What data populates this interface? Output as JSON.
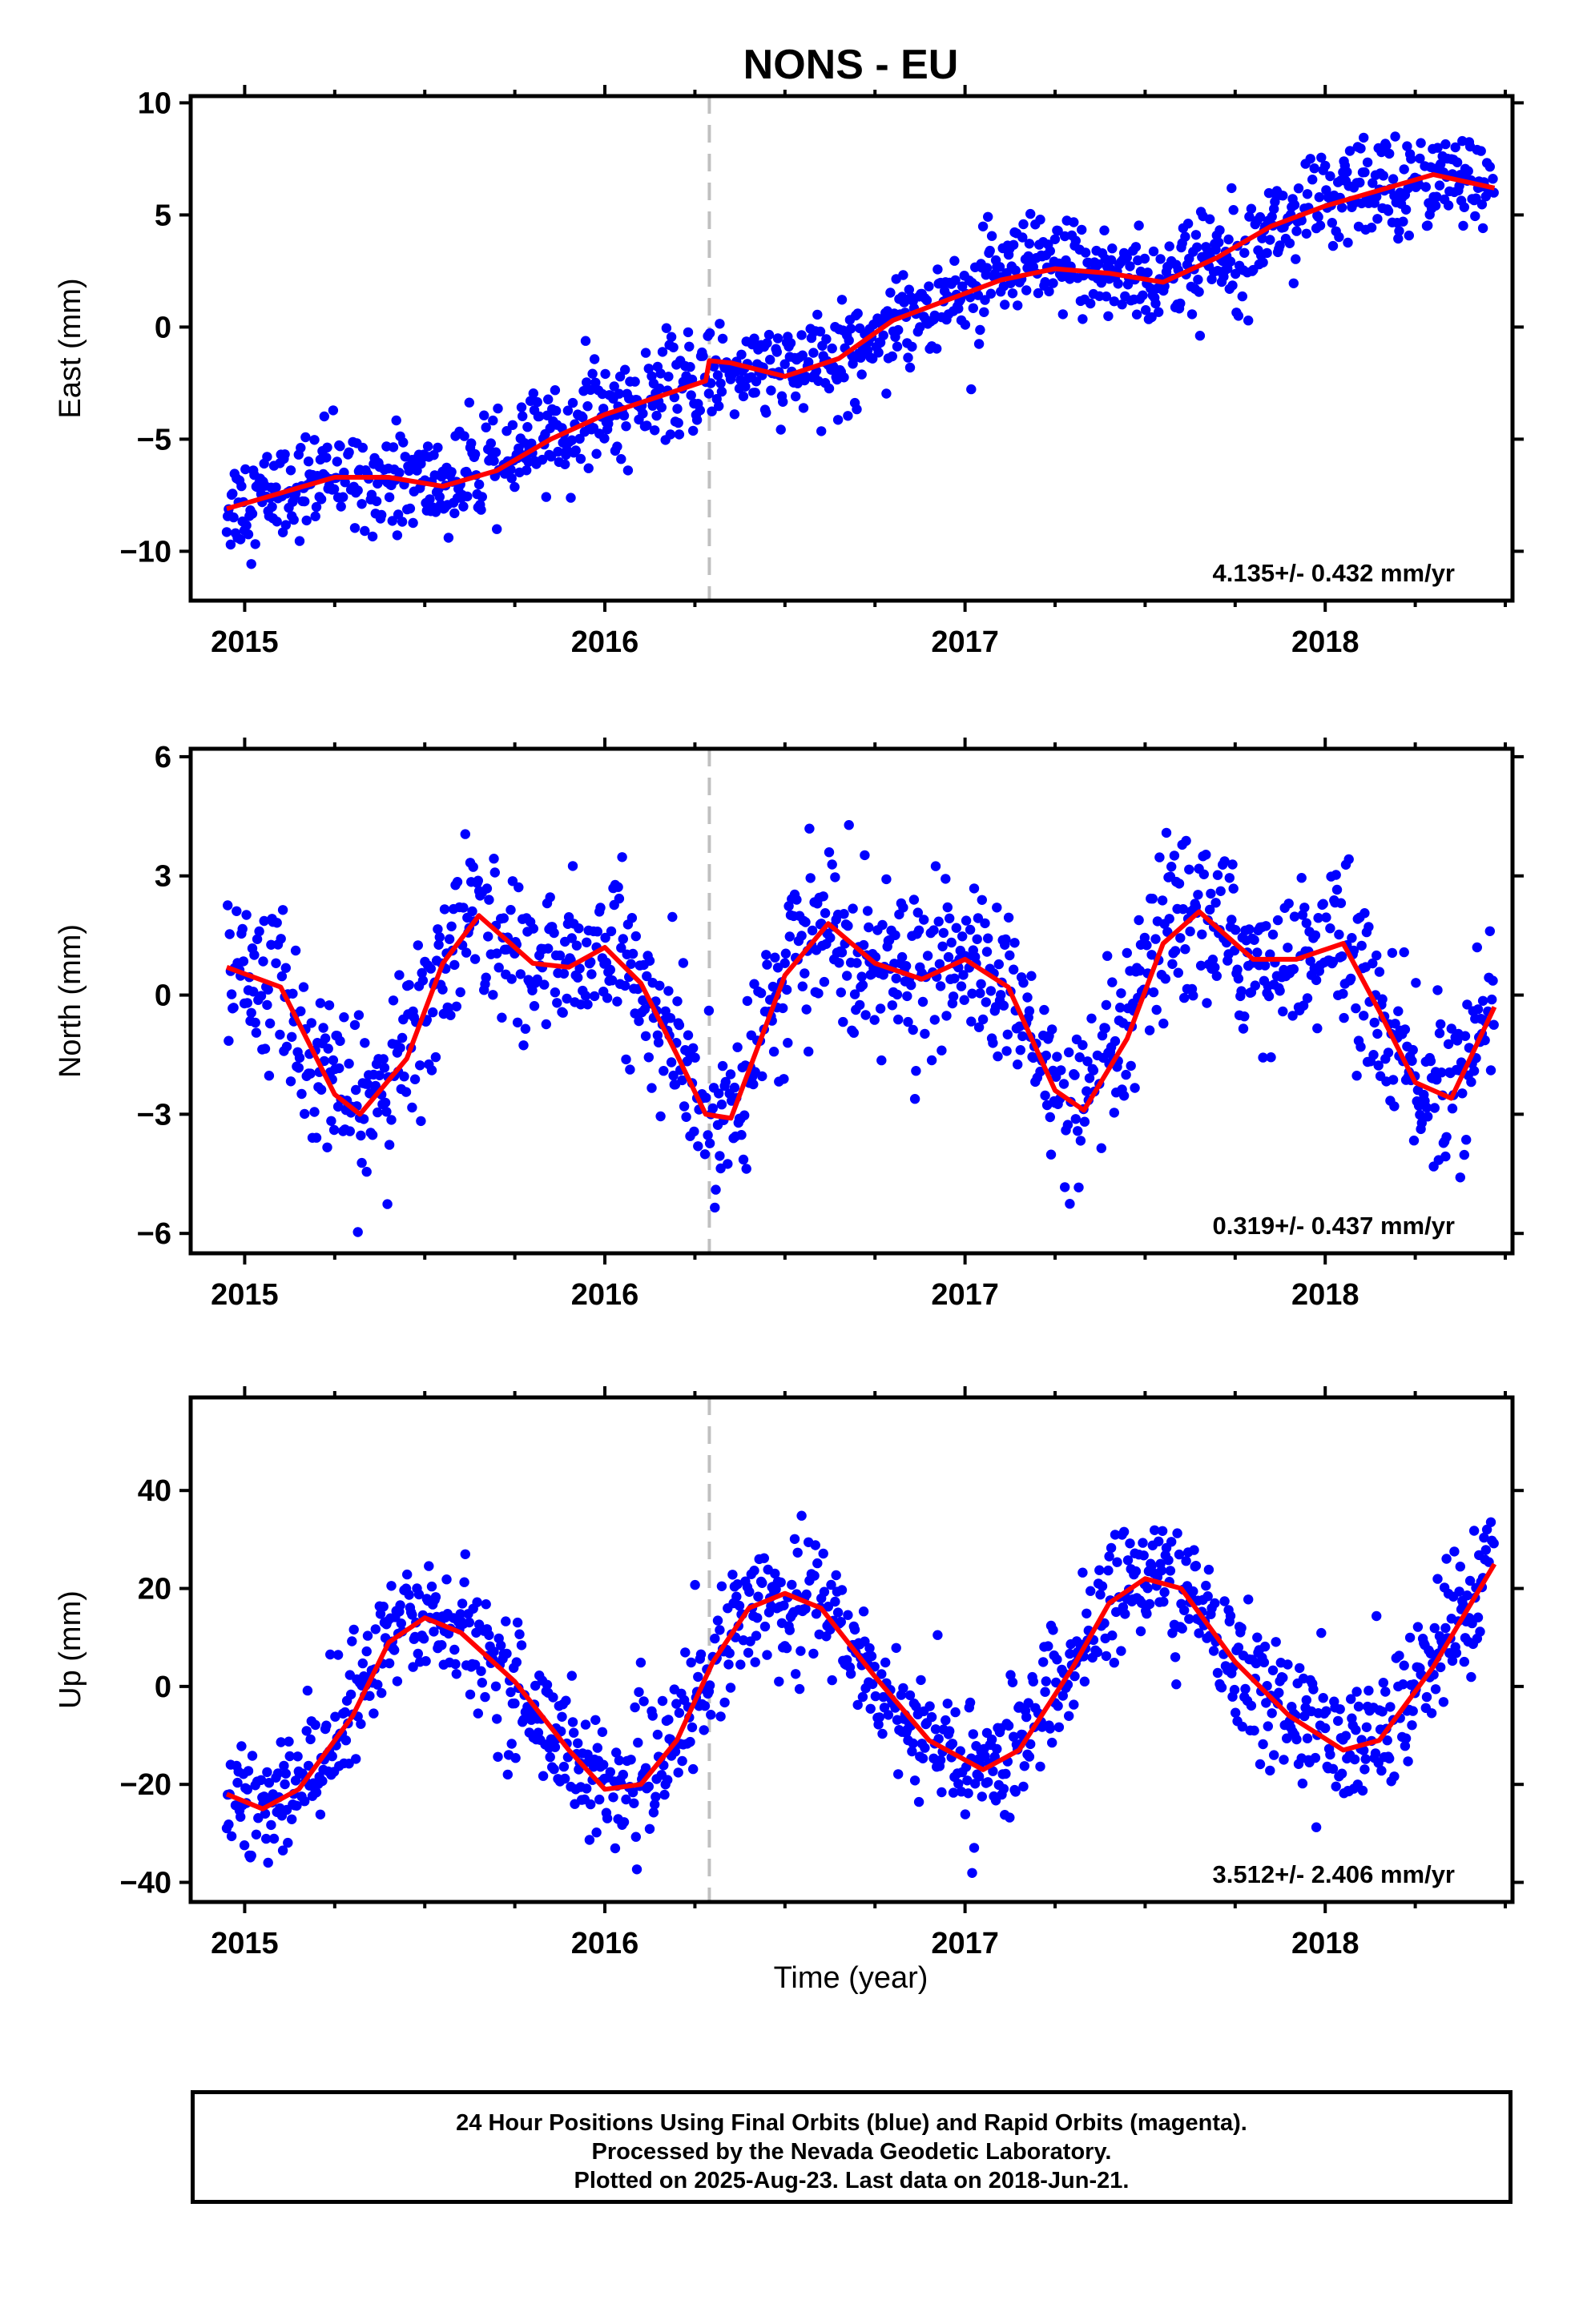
{
  "title": "NONS - EU",
  "x_axis": {
    "label": "Time (year)",
    "ticks": [
      2015,
      2016,
      2017,
      2018
    ],
    "range": [
      2014.85,
      2018.52
    ]
  },
  "event_line_year": 2016.29,
  "colors": {
    "points": "#0000ff",
    "model": "#ff0000",
    "event_line": "#c0c0c0"
  },
  "caption": {
    "line1": "24 Hour Positions Using Final Orbits (blue) and Rapid Orbits (magenta).",
    "line2": "Processed by the Nevada Geodetic Laboratory.",
    "line3": "Plotted on 2025-Aug-23. Last data on 2018-Jun-21."
  },
  "chart_data": [
    {
      "type": "scatter",
      "component": "east",
      "ylabel": "East (mm)",
      "ylim": [
        -12.2,
        10.3
      ],
      "yticks": [
        -10,
        -5,
        0,
        5,
        10
      ],
      "rate_text": "4.135+/- 0.432 mm/yr",
      "series": [
        {
          "name": "Daily positions",
          "x": [
            2014.95,
            2015.1,
            2015.25,
            2015.4,
            2015.55,
            2015.7,
            2015.85,
            2016.0,
            2016.15,
            2016.28,
            2016.35,
            2016.5,
            2016.65,
            2016.8,
            2016.95,
            2017.1,
            2017.25,
            2017.4,
            2017.55,
            2017.7,
            2017.85,
            2018.0,
            2018.15,
            2018.3,
            2018.47
          ],
          "y": [
            -8.0,
            -7.3,
            -6.6,
            -6.7,
            -7.1,
            -6.2,
            -4.8,
            -3.8,
            -3.1,
            -2.4,
            -1.6,
            -2.2,
            -1.5,
            0.4,
            1.2,
            2.2,
            2.7,
            2.4,
            2.0,
            3.2,
            4.6,
            5.5,
            6.2,
            6.8,
            6.2
          ]
        },
        {
          "name": "Model fit",
          "x": [
            2014.95,
            2015.1,
            2015.25,
            2015.4,
            2015.55,
            2015.7,
            2015.85,
            2016.0,
            2016.15,
            2016.28,
            2016.29,
            2016.35,
            2016.5,
            2016.65,
            2016.8,
            2016.95,
            2017.1,
            2017.25,
            2017.4,
            2017.55,
            2017.7,
            2017.85,
            2018.0,
            2018.15,
            2018.3,
            2018.47
          ],
          "y": [
            -8.1,
            -7.4,
            -6.7,
            -6.7,
            -7.1,
            -6.4,
            -5.0,
            -3.9,
            -3.1,
            -2.4,
            -1.5,
            -1.6,
            -2.2,
            -1.4,
            0.3,
            1.2,
            2.1,
            2.6,
            2.4,
            2.0,
            3.1,
            4.5,
            5.4,
            6.1,
            6.8,
            6.2
          ]
        }
      ]
    },
    {
      "type": "scatter",
      "component": "north",
      "ylabel": "North (mm)",
      "ylim": [
        -6.5,
        6.2
      ],
      "yticks": [
        -6,
        -3,
        0,
        3,
        6
      ],
      "rate_text": "0.319+/- 0.437 mm/yr",
      "series": [
        {
          "name": "Daily positions",
          "x": [
            2014.95,
            2015.1,
            2015.25,
            2015.32,
            2015.45,
            2015.55,
            2015.65,
            2015.8,
            2015.9,
            2016.0,
            2016.1,
            2016.2,
            2016.28,
            2016.35,
            2016.5,
            2016.62,
            2016.75,
            2016.88,
            2017.0,
            2017.12,
            2017.25,
            2017.33,
            2017.45,
            2017.55,
            2017.65,
            2017.8,
            2017.92,
            2018.05,
            2018.15,
            2018.25,
            2018.35,
            2018.47
          ],
          "y": [
            0.6,
            0.1,
            -2.6,
            -3.0,
            -1.5,
            0.9,
            2.0,
            0.7,
            0.8,
            1.2,
            0.2,
            -1.6,
            -3.0,
            -2.9,
            0.6,
            1.8,
            0.7,
            0.5,
            0.9,
            0.1,
            -2.5,
            -2.9,
            -1.0,
            1.4,
            2.1,
            0.8,
            1.0,
            1.3,
            -0.5,
            -2.2,
            -2.5,
            -0.3
          ]
        },
        {
          "name": "Model fit",
          "x": [
            2014.95,
            2015.1,
            2015.25,
            2015.32,
            2015.45,
            2015.55,
            2015.65,
            2015.8,
            2015.9,
            2016.0,
            2016.1,
            2016.2,
            2016.28,
            2016.35,
            2016.5,
            2016.62,
            2016.75,
            2016.88,
            2017.0,
            2017.12,
            2017.25,
            2017.33,
            2017.45,
            2017.55,
            2017.65,
            2017.8,
            2017.92,
            2018.05,
            2018.15,
            2018.25,
            2018.35,
            2018.47
          ],
          "y": [
            0.7,
            0.2,
            -2.5,
            -3.0,
            -1.6,
            0.8,
            2.0,
            0.8,
            0.7,
            1.2,
            0.3,
            -1.5,
            -3.0,
            -3.1,
            0.5,
            1.8,
            0.8,
            0.4,
            0.9,
            0.2,
            -2.4,
            -2.9,
            -1.1,
            1.3,
            2.1,
            0.9,
            0.9,
            1.3,
            -0.4,
            -2.2,
            -2.6,
            -0.3
          ]
        }
      ]
    },
    {
      "type": "scatter",
      "component": "up",
      "ylabel": "Up (mm)",
      "ylim": [
        -44,
        59
      ],
      "yticks": [
        -40,
        -20,
        0,
        20,
        40
      ],
      "rate_text": "3.512+/- 2.406 mm/yr",
      "series": [
        {
          "name": "Daily positions",
          "x": [
            2014.95,
            2015.05,
            2015.15,
            2015.3,
            2015.4,
            2015.5,
            2015.6,
            2015.75,
            2015.9,
            2016.0,
            2016.1,
            2016.2,
            2016.3,
            2016.4,
            2016.5,
            2016.6,
            2016.75,
            2016.9,
            2017.05,
            2017.15,
            2017.3,
            2017.4,
            2017.5,
            2017.6,
            2017.75,
            2017.9,
            2018.05,
            2018.15,
            2018.3,
            2018.47
          ],
          "y": [
            -23,
            -25,
            -20,
            -5,
            10,
            15,
            12,
            0,
            -13,
            -21,
            -20,
            -10,
            5,
            16,
            20,
            17,
            2,
            -12,
            -17,
            -12,
            5,
            17,
            23,
            20,
            5,
            -5,
            -13,
            -10,
            5,
            25
          ]
        },
        {
          "name": "Model fit",
          "x": [
            2014.95,
            2015.05,
            2015.15,
            2015.3,
            2015.4,
            2015.5,
            2015.6,
            2015.75,
            2015.9,
            2016.0,
            2016.1,
            2016.2,
            2016.3,
            2016.4,
            2016.5,
            2016.6,
            2016.75,
            2016.9,
            2017.05,
            2017.15,
            2017.3,
            2017.4,
            2017.5,
            2017.6,
            2017.75,
            2017.9,
            2018.05,
            2018.15,
            2018.3,
            2018.47
          ],
          "y": [
            -22,
            -25,
            -21,
            -6,
            9,
            14,
            11,
            1,
            -13,
            -21,
            -20,
            -11,
            5,
            16,
            19,
            16,
            2,
            -11,
            -17,
            -13,
            4,
            17,
            22,
            20,
            5,
            -6,
            -13,
            -11,
            4,
            25
          ]
        }
      ]
    }
  ]
}
